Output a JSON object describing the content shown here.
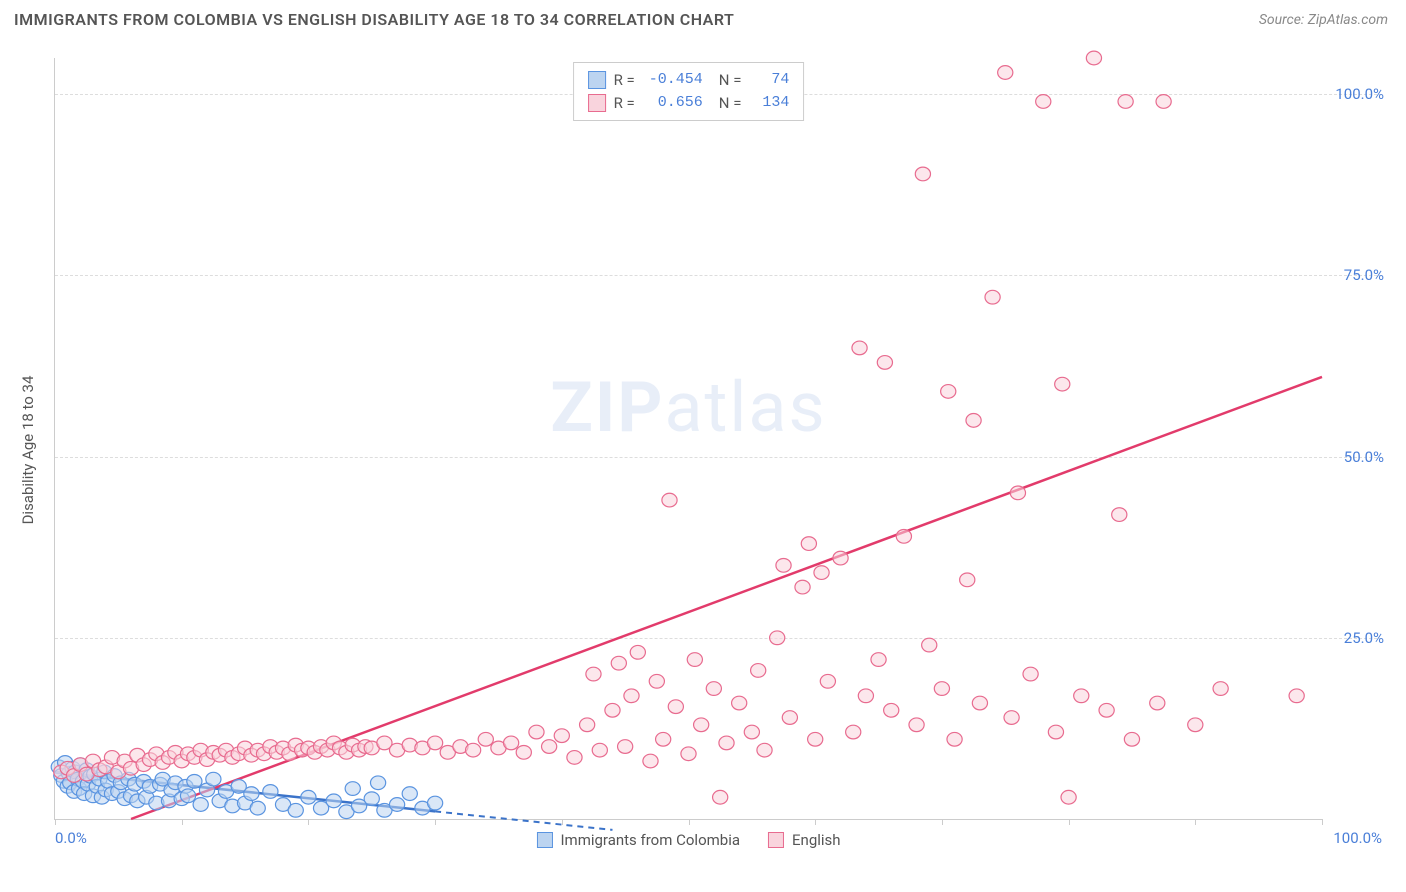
{
  "title": "IMMIGRANTS FROM COLOMBIA VS ENGLISH DISABILITY AGE 18 TO 34 CORRELATION CHART",
  "source": "Source: ZipAtlas.com",
  "yaxis_label": "Disability Age 18 to 34",
  "watermark_bold": "ZIP",
  "watermark_light": "atlas",
  "chart": {
    "type": "scatter",
    "xlim": [
      0,
      100
    ],
    "ylim": [
      0,
      105
    ],
    "x_tick_start": "0.0%",
    "x_tick_end": "100.0%",
    "x_ticks": [
      0,
      10,
      20,
      30,
      40,
      50,
      60,
      70,
      80,
      90,
      100
    ],
    "y_ticks": [
      {
        "v": 25,
        "label": "25.0%"
      },
      {
        "v": 50,
        "label": "50.0%"
      },
      {
        "v": 75,
        "label": "75.0%"
      },
      {
        "v": 100,
        "label": "100.0%"
      }
    ],
    "grid_color": "#dddddd",
    "background_color": "#ffffff",
    "tick_color": "#4a7fd8",
    "series": [
      {
        "key": "blue",
        "name": "Immigrants from Colombia",
        "marker_fill": "#bcd4f0",
        "marker_stroke": "#5a94e0",
        "marker_opacity": 0.55,
        "line_color": "#3b73c9",
        "line_dash_after_x": 30,
        "R": "-0.454",
        "N": "74",
        "trend": {
          "x1": 0,
          "y1": 6.5,
          "x2": 44,
          "y2": -1.5
        },
        "points": [
          [
            0.3,
            7.2
          ],
          [
            0.5,
            6.0
          ],
          [
            0.7,
            5.2
          ],
          [
            0.8,
            7.8
          ],
          [
            1.0,
            4.5
          ],
          [
            1.1,
            6.3
          ],
          [
            1.2,
            5.0
          ],
          [
            1.4,
            7.0
          ],
          [
            1.5,
            3.8
          ],
          [
            1.6,
            6.5
          ],
          [
            1.8,
            5.5
          ],
          [
            1.9,
            4.2
          ],
          [
            2.0,
            7.5
          ],
          [
            2.2,
            5.2
          ],
          [
            2.3,
            3.5
          ],
          [
            2.5,
            6.8
          ],
          [
            2.6,
            4.8
          ],
          [
            2.8,
            5.9
          ],
          [
            3.0,
            3.2
          ],
          [
            3.1,
            6.2
          ],
          [
            3.3,
            4.5
          ],
          [
            3.5,
            5.5
          ],
          [
            3.7,
            3.0
          ],
          [
            3.9,
            6.5
          ],
          [
            4.0,
            4.0
          ],
          [
            4.2,
            5.2
          ],
          [
            4.5,
            3.5
          ],
          [
            4.7,
            6.0
          ],
          [
            5.0,
            3.8
          ],
          [
            5.2,
            5.0
          ],
          [
            5.5,
            2.8
          ],
          [
            5.8,
            5.5
          ],
          [
            6.0,
            3.2
          ],
          [
            6.3,
            4.8
          ],
          [
            6.5,
            2.5
          ],
          [
            7.0,
            5.2
          ],
          [
            7.2,
            3.0
          ],
          [
            7.5,
            4.5
          ],
          [
            8.0,
            2.2
          ],
          [
            8.3,
            4.8
          ],
          [
            8.5,
            5.5
          ],
          [
            9.0,
            2.5
          ],
          [
            9.2,
            4.0
          ],
          [
            9.5,
            5.0
          ],
          [
            10.0,
            2.8
          ],
          [
            10.3,
            4.5
          ],
          [
            10.5,
            3.2
          ],
          [
            11.0,
            5.2
          ],
          [
            11.5,
            2.0
          ],
          [
            12.0,
            4.0
          ],
          [
            12.5,
            5.5
          ],
          [
            13.0,
            2.5
          ],
          [
            13.5,
            3.8
          ],
          [
            14.0,
            1.8
          ],
          [
            14.5,
            4.5
          ],
          [
            15.0,
            2.2
          ],
          [
            15.5,
            3.5
          ],
          [
            16.0,
            1.5
          ],
          [
            17.0,
            3.8
          ],
          [
            18.0,
            2.0
          ],
          [
            19.0,
            1.2
          ],
          [
            20.0,
            3.0
          ],
          [
            21.0,
            1.5
          ],
          [
            22.0,
            2.5
          ],
          [
            23.0,
            1.0
          ],
          [
            23.5,
            4.2
          ],
          [
            24.0,
            1.8
          ],
          [
            25.0,
            2.8
          ],
          [
            25.5,
            5.0
          ],
          [
            26.0,
            1.2
          ],
          [
            27.0,
            2.0
          ],
          [
            28.0,
            3.5
          ],
          [
            29.0,
            1.5
          ],
          [
            30.0,
            2.2
          ]
        ]
      },
      {
        "key": "pink",
        "name": "English",
        "marker_fill": "#f9d4dd",
        "marker_stroke": "#e86b8f",
        "marker_opacity": 0.55,
        "line_color": "#e23b6b",
        "R": "0.656",
        "N": "134",
        "trend": {
          "x1": 6,
          "y1": 0,
          "x2": 100,
          "y2": 61
        },
        "points": [
          [
            0.5,
            6.5
          ],
          [
            1.0,
            7.0
          ],
          [
            1.5,
            6.0
          ],
          [
            2.0,
            7.5
          ],
          [
            2.5,
            6.2
          ],
          [
            3.0,
            8.0
          ],
          [
            3.5,
            6.8
          ],
          [
            4.0,
            7.2
          ],
          [
            4.5,
            8.5
          ],
          [
            5.0,
            6.5
          ],
          [
            5.5,
            8.0
          ],
          [
            6.0,
            7.0
          ],
          [
            6.5,
            8.8
          ],
          [
            7.0,
            7.5
          ],
          [
            7.5,
            8.2
          ],
          [
            8.0,
            9.0
          ],
          [
            8.5,
            7.8
          ],
          [
            9.0,
            8.5
          ],
          [
            9.5,
            9.2
          ],
          [
            10.0,
            8.0
          ],
          [
            10.5,
            9.0
          ],
          [
            11.0,
            8.5
          ],
          [
            11.5,
            9.5
          ],
          [
            12.0,
            8.2
          ],
          [
            12.5,
            9.2
          ],
          [
            13.0,
            8.8
          ],
          [
            13.5,
            9.5
          ],
          [
            14.0,
            8.5
          ],
          [
            14.5,
            9.0
          ],
          [
            15.0,
            9.8
          ],
          [
            15.5,
            8.8
          ],
          [
            16.0,
            9.5
          ],
          [
            16.5,
            9.0
          ],
          [
            17.0,
            10.0
          ],
          [
            17.5,
            9.2
          ],
          [
            18.0,
            9.8
          ],
          [
            18.5,
            9.0
          ],
          [
            19.0,
            10.2
          ],
          [
            19.5,
            9.5
          ],
          [
            20.0,
            9.8
          ],
          [
            20.5,
            9.2
          ],
          [
            21.0,
            10.0
          ],
          [
            21.5,
            9.5
          ],
          [
            22.0,
            10.5
          ],
          [
            22.5,
            9.8
          ],
          [
            23.0,
            9.2
          ],
          [
            23.5,
            10.2
          ],
          [
            24.0,
            9.5
          ],
          [
            24.5,
            10.0
          ],
          [
            25.0,
            9.8
          ],
          [
            26.0,
            10.5
          ],
          [
            27.0,
            9.5
          ],
          [
            28.0,
            10.2
          ],
          [
            29.0,
            9.8
          ],
          [
            30.0,
            10.5
          ],
          [
            31.0,
            9.2
          ],
          [
            32.0,
            10.0
          ],
          [
            33.0,
            9.5
          ],
          [
            34.0,
            11.0
          ],
          [
            35.0,
            9.8
          ],
          [
            36.0,
            10.5
          ],
          [
            37.0,
            9.2
          ],
          [
            38.0,
            12.0
          ],
          [
            39.0,
            10.0
          ],
          [
            40.0,
            11.5
          ],
          [
            41.0,
            8.5
          ],
          [
            42.0,
            13.0
          ],
          [
            42.5,
            20.0
          ],
          [
            43.0,
            9.5
          ],
          [
            44.0,
            15.0
          ],
          [
            44.5,
            21.5
          ],
          [
            45.0,
            10.0
          ],
          [
            45.5,
            17.0
          ],
          [
            46.0,
            23.0
          ],
          [
            47.0,
            8.0
          ],
          [
            47.5,
            19.0
          ],
          [
            48.0,
            11.0
          ],
          [
            48.5,
            44.0
          ],
          [
            49.0,
            15.5
          ],
          [
            50.0,
            9.0
          ],
          [
            50.5,
            22.0
          ],
          [
            51.0,
            13.0
          ],
          [
            52.0,
            18.0
          ],
          [
            53.0,
            10.5
          ],
          [
            54.0,
            16.0
          ],
          [
            55.0,
            12.0
          ],
          [
            55.5,
            20.5
          ],
          [
            56.0,
            9.5
          ],
          [
            57.0,
            25.0
          ],
          [
            57.5,
            35.0
          ],
          [
            58.0,
            14.0
          ],
          [
            59.0,
            32.0
          ],
          [
            59.5,
            38.0
          ],
          [
            60.0,
            11.0
          ],
          [
            60.5,
            34.0
          ],
          [
            61.0,
            19.0
          ],
          [
            62.0,
            36.0
          ],
          [
            63.0,
            12.0
          ],
          [
            63.5,
            65.0
          ],
          [
            64.0,
            17.0
          ],
          [
            65.0,
            22.0
          ],
          [
            65.5,
            63.0
          ],
          [
            66.0,
            15.0
          ],
          [
            67.0,
            39.0
          ],
          [
            68.0,
            13.0
          ],
          [
            68.5,
            89.0
          ],
          [
            69.0,
            24.0
          ],
          [
            70.0,
            18.0
          ],
          [
            70.5,
            59.0
          ],
          [
            71.0,
            11.0
          ],
          [
            72.0,
            33.0
          ],
          [
            72.5,
            55.0
          ],
          [
            73.0,
            16.0
          ],
          [
            74.0,
            72.0
          ],
          [
            75.0,
            103.0
          ],
          [
            75.5,
            14.0
          ],
          [
            76.0,
            45.0
          ],
          [
            77.0,
            20.0
          ],
          [
            78.0,
            99.0
          ],
          [
            79.0,
            12.0
          ],
          [
            79.5,
            60.0
          ],
          [
            80.0,
            3.0
          ],
          [
            81.0,
            17.0
          ],
          [
            82.0,
            105.0
          ],
          [
            83.0,
            15.0
          ],
          [
            84.0,
            42.0
          ],
          [
            84.5,
            99.0
          ],
          [
            85.0,
            11.0
          ],
          [
            87.0,
            16.0
          ],
          [
            87.5,
            99.0
          ],
          [
            90.0,
            13.0
          ],
          [
            92.0,
            18.0
          ],
          [
            98.0,
            17.0
          ],
          [
            52.5,
            3.0
          ]
        ]
      }
    ]
  }
}
